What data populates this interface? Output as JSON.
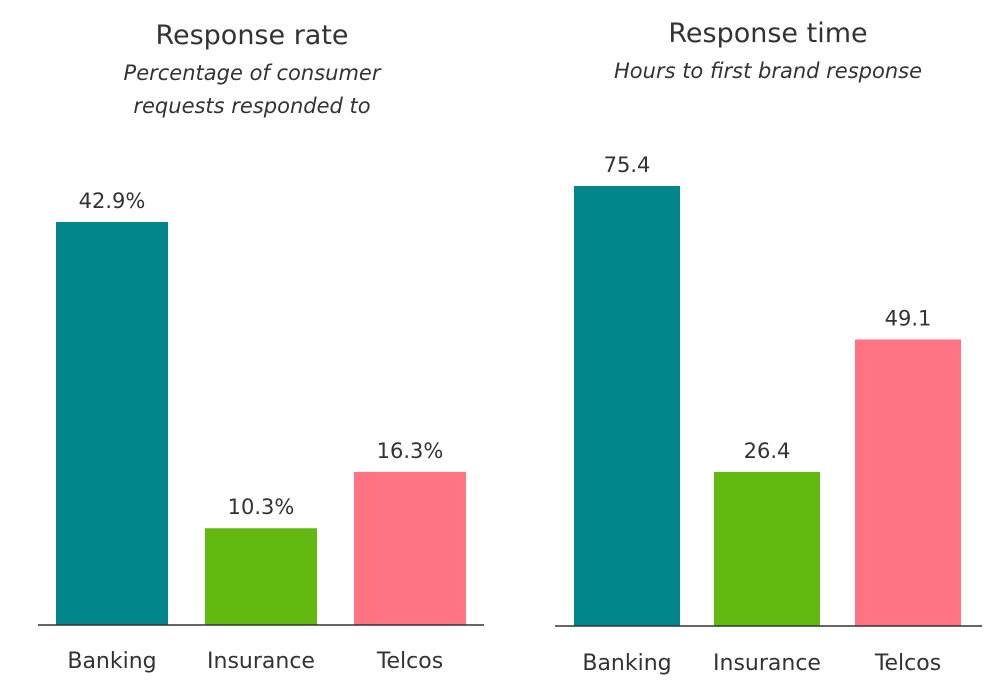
{
  "chart_data": [
    {
      "type": "bar",
      "title": "Response rate",
      "subtitle": [
        "Percentage of consumer",
        "requests responded to"
      ],
      "categories": [
        "Banking",
        "Insurance",
        "Telcos"
      ],
      "values": [
        42.9,
        10.3,
        16.3
      ],
      "value_labels": [
        "42.9%",
        "10.3%",
        "16.3%"
      ],
      "ylim": [
        0,
        50
      ],
      "grid": false,
      "legend": "none"
    },
    {
      "type": "bar",
      "title": "Response time",
      "subtitle": [
        "Hours to first brand response"
      ],
      "categories": [
        "Banking",
        "Insurance",
        "Telcos"
      ],
      "values": [
        75.4,
        26.4,
        49.1
      ],
      "value_labels": [
        "75.4",
        "26.4",
        "49.1"
      ],
      "ylim": [
        0,
        82
      ],
      "grid": false,
      "legend": "none"
    }
  ],
  "colors": {
    "Banking": "#00868B",
    "Insurance": "#62B90F",
    "Telcos": "#FF7383",
    "axis": "#333333"
  }
}
